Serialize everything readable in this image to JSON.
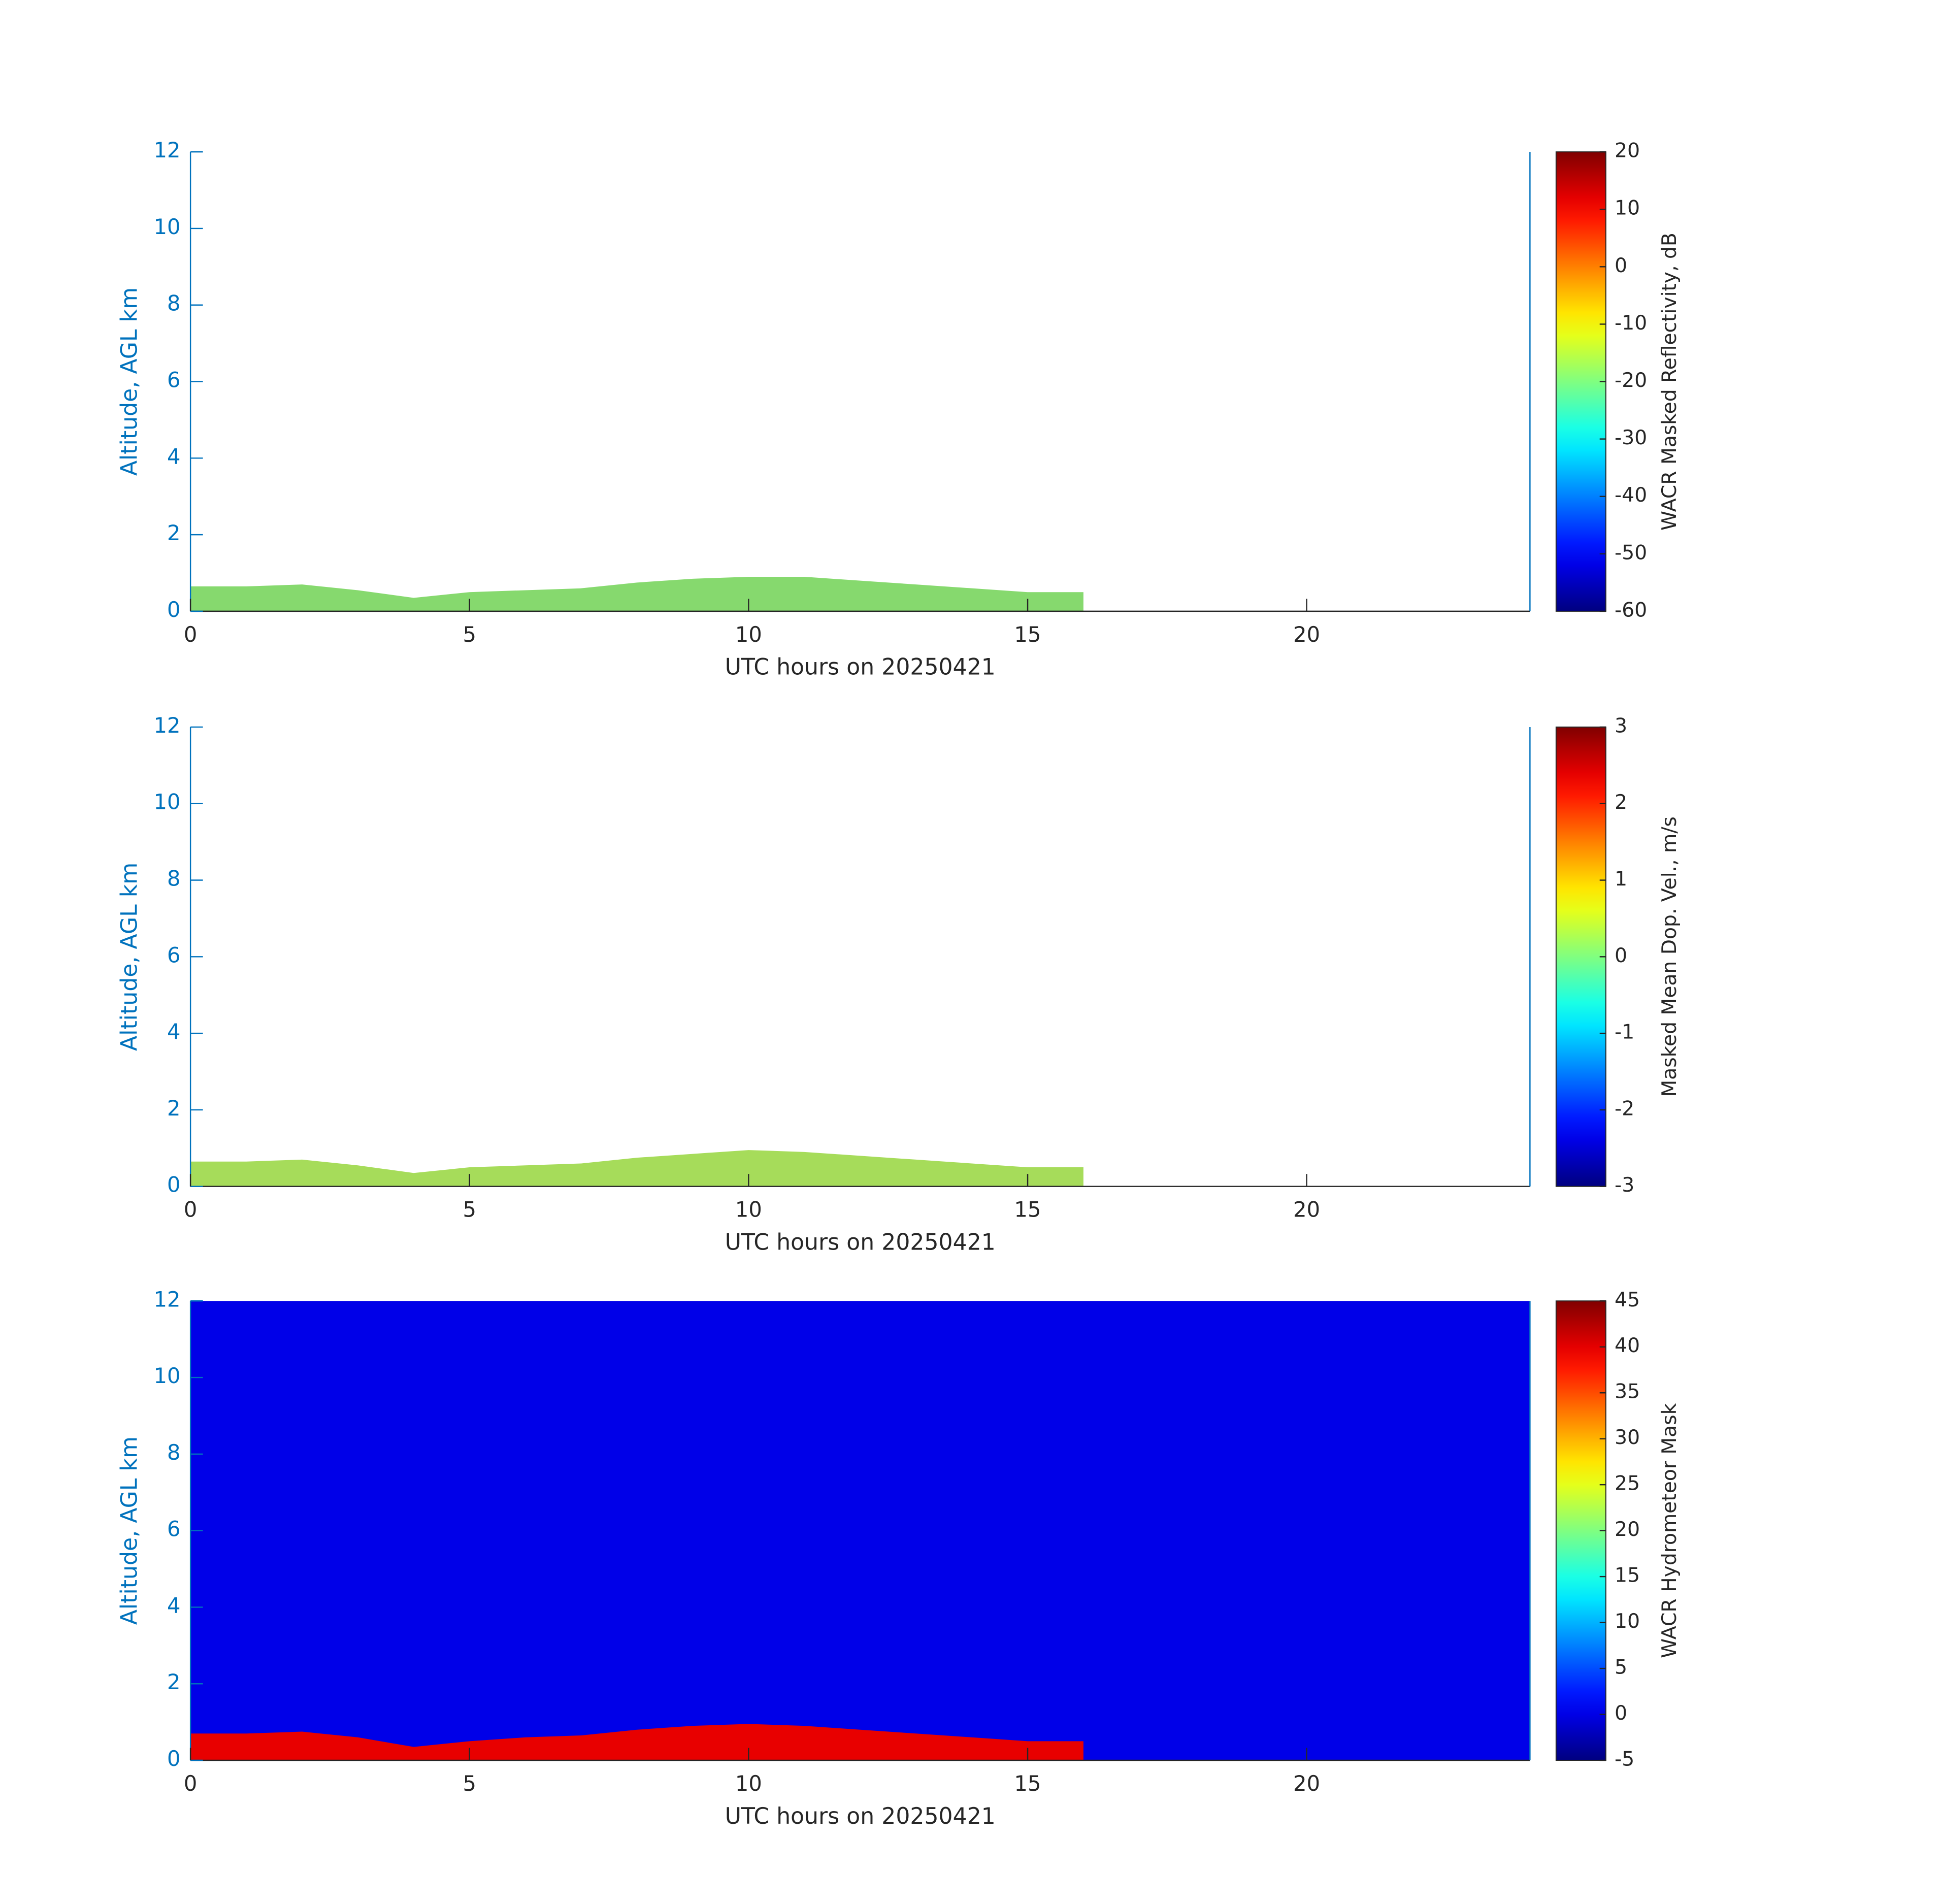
{
  "chart_data": [
    {
      "type": "heatmap",
      "xlabel": "UTC hours on 20250421",
      "ylabel": "Altitude, AGL km",
      "xlim": [
        0,
        24
      ],
      "xticks": [
        0,
        5,
        10,
        15,
        20
      ],
      "ylim": [
        0,
        12
      ],
      "yticks": [
        0,
        2,
        4,
        6,
        8,
        10,
        12
      ],
      "colormap": "jet",
      "clim": [
        -60,
        20
      ],
      "cticks": [
        -60,
        -50,
        -40,
        -30,
        -20,
        -10,
        0,
        10,
        20
      ],
      "clabel": "WACR Masked Reflectivity, dB",
      "color": "#86d96e",
      "x": [
        0,
        1,
        2,
        3,
        4,
        5,
        6,
        7,
        8,
        9,
        10,
        11,
        12,
        13,
        14,
        15,
        16
      ],
      "values": [
        0.65,
        0.65,
        0.7,
        0.55,
        0.35,
        0.5,
        0.55,
        0.6,
        0.75,
        0.85,
        0.9,
        0.9,
        0.8,
        0.7,
        0.6,
        0.5,
        0.5
      ]
    },
    {
      "type": "heatmap",
      "xlabel": "UTC hours on 20250421",
      "ylabel": "Altitude, AGL km",
      "xlim": [
        0,
        24
      ],
      "xticks": [
        0,
        5,
        10,
        15,
        20
      ],
      "ylim": [
        0,
        12
      ],
      "yticks": [
        0,
        2,
        4,
        6,
        8,
        10,
        12
      ],
      "colormap": "jet",
      "clim": [
        -3,
        3
      ],
      "cticks": [
        -3,
        -2,
        -1,
        0,
        1,
        2,
        3
      ],
      "clabel": "Masked Mean Dop. Vel., m/s",
      "color": "#a6dc5a",
      "x": [
        0,
        1,
        2,
        3,
        4,
        5,
        6,
        7,
        8,
        9,
        10,
        11,
        12,
        13,
        14,
        15,
        16
      ],
      "values": [
        0.65,
        0.65,
        0.7,
        0.55,
        0.35,
        0.5,
        0.55,
        0.6,
        0.75,
        0.85,
        0.95,
        0.9,
        0.8,
        0.7,
        0.6,
        0.5,
        0.5
      ]
    },
    {
      "type": "heatmap",
      "xlabel": "UTC hours on 20250421",
      "ylabel": "Altitude, AGL km",
      "xlim": [
        0,
        24
      ],
      "xticks": [
        0,
        5,
        10,
        15,
        20
      ],
      "ylim": [
        0,
        12
      ],
      "yticks": [
        0,
        2,
        4,
        6,
        8,
        10,
        12
      ],
      "colormap": "jet",
      "clim": [
        -5,
        45
      ],
      "cticks": [
        -5,
        0,
        5,
        10,
        15,
        20,
        25,
        30,
        35,
        40,
        45
      ],
      "clabel": "WACR Hydrometeor Mask",
      "background": "#0000e8",
      "color": "#e80000",
      "x": [
        0,
        1,
        2,
        3,
        4,
        5,
        6,
        7,
        8,
        9,
        10,
        11,
        12,
        13,
        14,
        15,
        16
      ],
      "values": [
        0.7,
        0.7,
        0.75,
        0.6,
        0.35,
        0.5,
        0.6,
        0.65,
        0.8,
        0.9,
        0.95,
        0.9,
        0.8,
        0.7,
        0.6,
        0.5,
        0.5
      ]
    }
  ]
}
